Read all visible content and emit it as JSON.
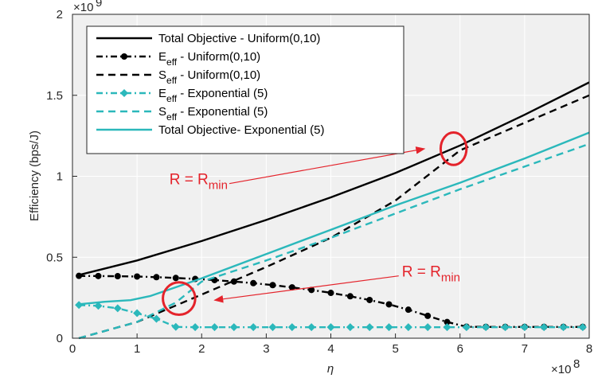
{
  "chart_data": {
    "type": "line",
    "xlabel": "η",
    "ylabel": "Efficiency (bps/J)",
    "xlim": [
      0,
      8
    ],
    "ylim": [
      0,
      2
    ],
    "x_multiplier": "×10^8",
    "y_multiplier": "×10^9",
    "x_ticks": [
      "0",
      "1",
      "2",
      "3",
      "4",
      "5",
      "6",
      "7",
      "8"
    ],
    "y_ticks": [
      "0",
      "0.5",
      "1",
      "1.5",
      "2"
    ],
    "grid": true,
    "legend_position": "top-left",
    "series": [
      {
        "name": "Total Objective - Uniform(0,10)",
        "name_parts": [
          "Total Objective - Uniform(0,10)"
        ],
        "color": "#000000",
        "style": "solid",
        "marker": "none",
        "x": [
          0.1,
          1,
          2,
          3,
          4,
          5,
          6,
          7,
          8
        ],
        "y": [
          0.39,
          0.48,
          0.6,
          0.73,
          0.87,
          1.02,
          1.19,
          1.38,
          1.58
        ]
      },
      {
        "name": "E_eff - Uniform(0,10)",
        "name_parts": [
          "E",
          "eff",
          " - Uniform(0,10)"
        ],
        "color": "#000000",
        "style": "dashdot",
        "marker": "circle",
        "x": [
          0.1,
          0.4,
          0.7,
          1.0,
          1.3,
          1.6,
          1.9,
          2.2,
          2.5,
          2.8,
          3.1,
          3.4,
          3.7,
          4.0,
          4.3,
          4.6,
          4.9,
          5.2,
          5.5,
          5.8,
          6.1,
          6.4,
          6.7,
          7.0,
          7.3,
          7.6,
          7.9
        ],
        "y": [
          0.385,
          0.384,
          0.383,
          0.381,
          0.377,
          0.372,
          0.366,
          0.359,
          0.35,
          0.34,
          0.328,
          0.314,
          0.298,
          0.28,
          0.259,
          0.236,
          0.209,
          0.176,
          0.138,
          0.1,
          0.071,
          0.07,
          0.07,
          0.07,
          0.07,
          0.07,
          0.07
        ]
      },
      {
        "name": "S_eff - Uniform(0,10)",
        "name_parts": [
          "S",
          "eff",
          " - Uniform(0,10)"
        ],
        "color": "#000000",
        "style": "dashed",
        "marker": "none",
        "x": [
          0.1,
          1,
          2,
          3,
          4,
          5,
          6,
          7,
          8
        ],
        "y": [
          0.0,
          0.1,
          0.27,
          0.44,
          0.62,
          0.85,
          1.16,
          1.33,
          1.5
        ]
      },
      {
        "name": "E_eff - Exponential (5)",
        "name_parts": [
          "E",
          "eff",
          " - Exponential (5)"
        ],
        "color": "#2bb8bb",
        "style": "dashdot",
        "marker": "diamond",
        "x": [
          0.1,
          0.4,
          0.7,
          1.0,
          1.3,
          1.6,
          1.9,
          2.2,
          2.5,
          2.8,
          3.1,
          3.4,
          3.7,
          4.0,
          4.3,
          4.6,
          4.9,
          5.2,
          5.5,
          5.8,
          6.1,
          6.4,
          6.7,
          7.0,
          7.3,
          7.6,
          7.9
        ],
        "y": [
          0.205,
          0.2,
          0.185,
          0.155,
          0.12,
          0.07,
          0.068,
          0.068,
          0.068,
          0.068,
          0.068,
          0.068,
          0.068,
          0.068,
          0.068,
          0.068,
          0.068,
          0.068,
          0.068,
          0.068,
          0.068,
          0.068,
          0.068,
          0.068,
          0.068,
          0.068,
          0.068
        ]
      },
      {
        "name": "S_eff - Exponential (5)",
        "name_parts": [
          "S",
          "eff",
          " - Exponential (5)"
        ],
        "color": "#2bb8bb",
        "style": "dashed",
        "marker": "none",
        "x": [
          0.1,
          1,
          1.6,
          2,
          3,
          4,
          5,
          6,
          7,
          8
        ],
        "y": [
          0.0,
          0.1,
          0.22,
          0.35,
          0.48,
          0.62,
          0.77,
          0.92,
          1.06,
          1.2
        ]
      },
      {
        "name": "Total Objective- Exponential (5)",
        "name_parts": [
          "Total Objective- Exponential (5)"
        ],
        "color": "#2bb8bb",
        "style": "solid",
        "marker": "none",
        "x": [
          0.1,
          0.5,
          0.9,
          1.2,
          2,
          3,
          4,
          5,
          6,
          7,
          8
        ],
        "y": [
          0.21,
          0.225,
          0.235,
          0.26,
          0.37,
          0.52,
          0.67,
          0.82,
          0.96,
          1.11,
          1.27
        ]
      }
    ],
    "annotations": [
      {
        "text_parts": [
          "R = R",
          "min"
        ],
        "x": 1.5,
        "y": 0.95,
        "arrow_to": [
          5.45,
          1.17
        ]
      },
      {
        "text_parts": [
          "R = R",
          "min"
        ],
        "x": 5.1,
        "y": 0.38,
        "arrow_to": [
          2.2,
          0.235
        ]
      }
    ],
    "ellipses": [
      {
        "cx": 5.9,
        "cy": 1.17,
        "rx": 0.2,
        "ry": 0.1
      },
      {
        "cx": 1.65,
        "cy": 0.245,
        "rx": 0.25,
        "ry": 0.1
      }
    ]
  }
}
